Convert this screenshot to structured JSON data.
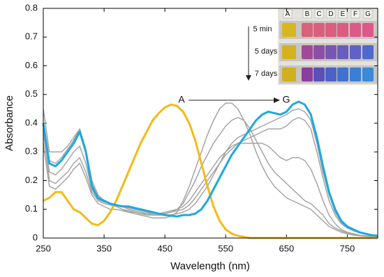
{
  "chart_data": {
    "type": "line",
    "xlabel": "Wavelength (nm)",
    "ylabel": "Absorbance",
    "xlim": [
      250,
      800
    ],
    "ylim": [
      0,
      0.8
    ],
    "xticks": [
      250,
      350,
      450,
      550,
      650,
      750
    ],
    "yticks": [
      0,
      0.1,
      0.2,
      0.3,
      0.4,
      0.5,
      0.6,
      0.7,
      0.8
    ],
    "x": [
      250,
      260,
      270,
      280,
      290,
      300,
      310,
      320,
      330,
      340,
      350,
      360,
      370,
      380,
      390,
      400,
      410,
      420,
      430,
      440,
      450,
      460,
      470,
      480,
      490,
      500,
      510,
      520,
      530,
      540,
      550,
      560,
      570,
      580,
      590,
      600,
      610,
      620,
      630,
      640,
      650,
      660,
      670,
      680,
      690,
      700,
      710,
      720,
      730,
      740,
      750,
      760,
      770,
      780,
      790,
      800
    ],
    "series": [
      {
        "color": "#a3a3a3",
        "values": [
          0.45,
          0.3,
          0.3,
          0.3,
          0.32,
          0.35,
          0.38,
          0.31,
          0.2,
          0.15,
          0.13,
          0.12,
          0.11,
          0.1,
          0.09,
          0.085,
          0.08,
          0.075,
          0.07,
          0.07,
          0.07,
          0.075,
          0.09,
          0.13,
          0.18,
          0.24,
          0.3,
          0.36,
          0.41,
          0.45,
          0.47,
          0.47,
          0.45,
          0.41,
          0.36,
          0.3,
          0.25,
          0.21,
          0.18,
          0.16,
          0.14,
          0.13,
          0.12,
          0.11,
          0.1,
          0.08,
          0.06,
          0.04,
          0.03,
          0.02,
          0.015,
          0.01,
          0.008,
          0.006,
          0.005,
          0.004
        ]
      },
      {
        "color": "#a3a3a3",
        "values": [
          0.38,
          0.2,
          0.19,
          0.21,
          0.23,
          0.26,
          0.28,
          0.23,
          0.16,
          0.13,
          0.12,
          0.115,
          0.11,
          0.1,
          0.095,
          0.09,
          0.085,
          0.08,
          0.08,
          0.08,
          0.085,
          0.09,
          0.1,
          0.12,
          0.16,
          0.2,
          0.25,
          0.29,
          0.33,
          0.36,
          0.39,
          0.41,
          0.42,
          0.41,
          0.38,
          0.34,
          0.3,
          0.26,
          0.23,
          0.21,
          0.19,
          0.17,
          0.15,
          0.13,
          0.12,
          0.1,
          0.08,
          0.05,
          0.035,
          0.025,
          0.018,
          0.012,
          0.009,
          0.007,
          0.005,
          0.004
        ]
      },
      {
        "color": "#a3a3a3",
        "values": [
          0.33,
          0.18,
          0.17,
          0.19,
          0.21,
          0.24,
          0.26,
          0.21,
          0.15,
          0.12,
          0.11,
          0.1,
          0.1,
          0.095,
          0.09,
          0.09,
          0.085,
          0.085,
          0.085,
          0.085,
          0.09,
          0.095,
          0.1,
          0.11,
          0.13,
          0.16,
          0.19,
          0.22,
          0.25,
          0.28,
          0.3,
          0.32,
          0.33,
          0.33,
          0.33,
          0.33,
          0.33,
          0.32,
          0.3,
          0.28,
          0.27,
          0.28,
          0.28,
          0.27,
          0.24,
          0.19,
          0.13,
          0.08,
          0.05,
          0.03,
          0.02,
          0.015,
          0.01,
          0.008,
          0.006,
          0.005
        ]
      },
      {
        "color": "#a3a3a3",
        "values": [
          0.36,
          0.23,
          0.22,
          0.24,
          0.27,
          0.3,
          0.32,
          0.26,
          0.17,
          0.135,
          0.125,
          0.12,
          0.115,
          0.11,
          0.105,
          0.1,
          0.095,
          0.09,
          0.085,
          0.085,
          0.085,
          0.09,
          0.095,
          0.1,
          0.115,
          0.14,
          0.17,
          0.2,
          0.23,
          0.26,
          0.29,
          0.31,
          0.33,
          0.34,
          0.35,
          0.36,
          0.37,
          0.38,
          0.38,
          0.38,
          0.39,
          0.41,
          0.42,
          0.41,
          0.38,
          0.3,
          0.21,
          0.13,
          0.08,
          0.05,
          0.035,
          0.025,
          0.018,
          0.013,
          0.01,
          0.008
        ]
      },
      {
        "color": "#a3a3a3",
        "values": [
          0.39,
          0.27,
          0.26,
          0.28,
          0.31,
          0.34,
          0.38,
          0.3,
          0.19,
          0.14,
          0.13,
          0.12,
          0.115,
          0.11,
          0.1,
          0.095,
          0.09,
          0.085,
          0.08,
          0.08,
          0.08,
          0.08,
          0.085,
          0.09,
          0.1,
          0.12,
          0.15,
          0.18,
          0.22,
          0.26,
          0.3,
          0.33,
          0.35,
          0.36,
          0.37,
          0.38,
          0.39,
          0.4,
          0.41,
          0.42,
          0.43,
          0.445,
          0.45,
          0.44,
          0.41,
          0.33,
          0.23,
          0.15,
          0.09,
          0.055,
          0.038,
          0.028,
          0.02,
          0.015,
          0.01,
          0.008
        ]
      },
      {
        "color": "#f5b918",
        "values": [
          0.13,
          0.14,
          0.16,
          0.16,
          0.13,
          0.1,
          0.09,
          0.07,
          0.05,
          0.045,
          0.06,
          0.09,
          0.13,
          0.18,
          0.23,
          0.28,
          0.33,
          0.37,
          0.41,
          0.435,
          0.455,
          0.465,
          0.46,
          0.44,
          0.4,
          0.34,
          0.26,
          0.18,
          0.11,
          0.06,
          0.03,
          0.015,
          0.008,
          0.004,
          0,
          0,
          0,
          0,
          0,
          0,
          0,
          0,
          0,
          0,
          0,
          0,
          0,
          0,
          0,
          0,
          0,
          0,
          0,
          0,
          0,
          0
        ]
      },
      {
        "color": "#1ea9e0",
        "values": [
          0.4,
          0.26,
          0.25,
          0.27,
          0.3,
          0.33,
          0.37,
          0.3,
          0.18,
          0.14,
          0.13,
          0.12,
          0.115,
          0.11,
          0.11,
          0.105,
          0.1,
          0.095,
          0.09,
          0.085,
          0.08,
          0.078,
          0.075,
          0.08,
          0.08,
          0.085,
          0.1,
          0.13,
          0.17,
          0.21,
          0.25,
          0.29,
          0.32,
          0.35,
          0.38,
          0.41,
          0.43,
          0.44,
          0.435,
          0.43,
          0.44,
          0.465,
          0.475,
          0.465,
          0.43,
          0.35,
          0.25,
          0.16,
          0.1,
          0.06,
          0.04,
          0.03,
          0.02,
          0.015,
          0.01,
          0.008
        ]
      }
    ],
    "annotation": {
      "start": "A",
      "end": "G"
    },
    "inset": {
      "columns": [
        "A",
        "B",
        "C",
        "D",
        "E",
        "F",
        "G"
      ],
      "rows": [
        "5 min",
        "5 days",
        "7 days"
      ]
    }
  }
}
